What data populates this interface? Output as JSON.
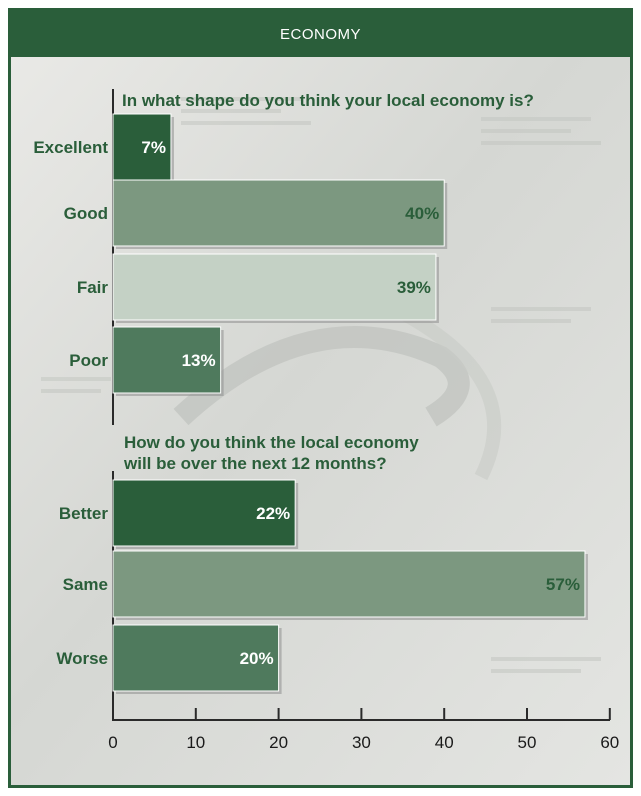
{
  "header": {
    "title": "ECONOMY"
  },
  "colors": {
    "frame": "#2a5e3a",
    "dark": "#2a5e3a",
    "medium": "#4f7a5d",
    "mid": "#7c9880",
    "light": "#c4d1c5",
    "text": "#2a5e3a"
  },
  "chart_data": [
    {
      "type": "bar",
      "orientation": "horizontal",
      "title": "In what shape do you think your local economy is?",
      "categories": [
        "Excellent",
        "Good",
        "Fair",
        "Poor"
      ],
      "values": [
        7,
        40,
        39,
        13
      ],
      "value_labels": [
        "7%",
        "40%",
        "39%",
        "13%"
      ],
      "bar_colors": [
        "#2a5e3a",
        "#7c9880",
        "#c4d1c5",
        "#4f7a5d"
      ],
      "label_colors": [
        "#ffffff",
        "#2a5e3a",
        "#2a5e3a",
        "#ffffff"
      ],
      "xlim": [
        0,
        60
      ]
    },
    {
      "type": "bar",
      "orientation": "horizontal",
      "title": "How do you think the local economy will be over the next 12 months?",
      "title_lines": [
        "How do you think the local economy",
        "will be over the next 12 months?"
      ],
      "categories": [
        "Better",
        "Same",
        "Worse"
      ],
      "values": [
        22,
        57,
        20
      ],
      "value_labels": [
        "22%",
        "57%",
        "20%"
      ],
      "bar_colors": [
        "#2a5e3a",
        "#7c9880",
        "#4f7a5d"
      ],
      "label_colors": [
        "#ffffff",
        "#2a5e3a",
        "#ffffff"
      ],
      "xlim": [
        0,
        60
      ]
    }
  ],
  "axis": {
    "ticks": [
      "0",
      "10",
      "20",
      "30",
      "40",
      "50",
      "60"
    ]
  }
}
